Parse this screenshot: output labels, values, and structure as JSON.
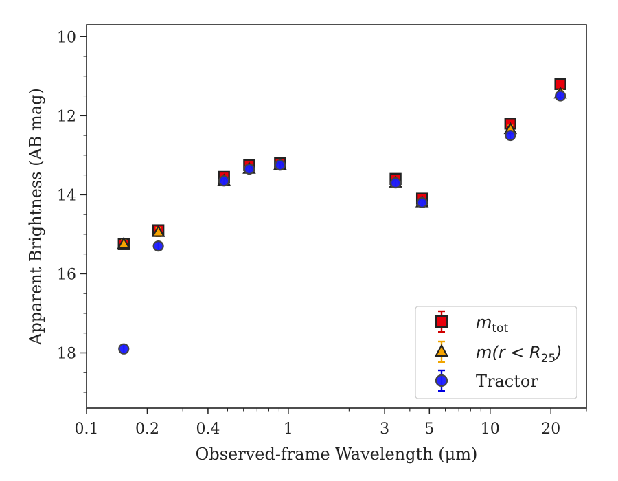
{
  "chart_data": {
    "type": "scatter",
    "xscale": "log",
    "xlim": [
      0.1,
      30
    ],
    "ylim": [
      19.4,
      9.7
    ],
    "y_inverted": true,
    "xlabel": "Observed-frame Wavelength (μm)",
    "ylabel": "Apparent Brightness (AB mag)",
    "x_ticks": [
      0.1,
      0.2,
      0.4,
      1,
      3,
      5,
      10,
      20
    ],
    "x_tick_labels": [
      "0.1",
      "0.2",
      "0.4",
      "1",
      "3",
      "5",
      "10",
      "20"
    ],
    "y_ticks": [
      10,
      12,
      14,
      16,
      18
    ],
    "y_tick_labels": [
      "10",
      "12",
      "14",
      "16",
      "18"
    ],
    "grid": false,
    "legend_position": "lower-right",
    "series": [
      {
        "name": "m_tot",
        "legend_main": "m",
        "legend_sub": "tot",
        "marker": "square",
        "fill": "#e8000b",
        "errcolor": "#d00000",
        "x": [
          0.153,
          0.227,
          0.48,
          0.64,
          0.91,
          3.4,
          4.6,
          12.6,
          22.3
        ],
        "y": [
          15.25,
          14.9,
          13.55,
          13.25,
          13.2,
          13.6,
          14.1,
          12.2,
          11.2
        ]
      },
      {
        "name": "m(r < R25)",
        "legend_main": "m(r < R",
        "legend_sub": "25",
        "legend_end": ")",
        "marker": "triangle",
        "fill": "#f5a300",
        "errcolor": "#f0a500",
        "x": [
          0.153,
          0.227,
          0.48,
          0.64,
          0.91,
          3.4,
          4.6,
          12.6,
          22.3
        ],
        "y": [
          15.25,
          14.95,
          13.65,
          13.35,
          13.25,
          13.7,
          14.2,
          12.35,
          11.45
        ]
      },
      {
        "name": "Tractor",
        "marker": "circle",
        "fill": "#1a1aff",
        "errcolor": "#0000e0",
        "x": [
          0.153,
          0.227,
          0.48,
          0.64,
          0.91,
          3.4,
          4.6,
          12.6,
          22.3
        ],
        "y": [
          17.9,
          15.3,
          13.65,
          13.35,
          13.25,
          13.7,
          14.2,
          12.5,
          11.5
        ]
      }
    ]
  }
}
